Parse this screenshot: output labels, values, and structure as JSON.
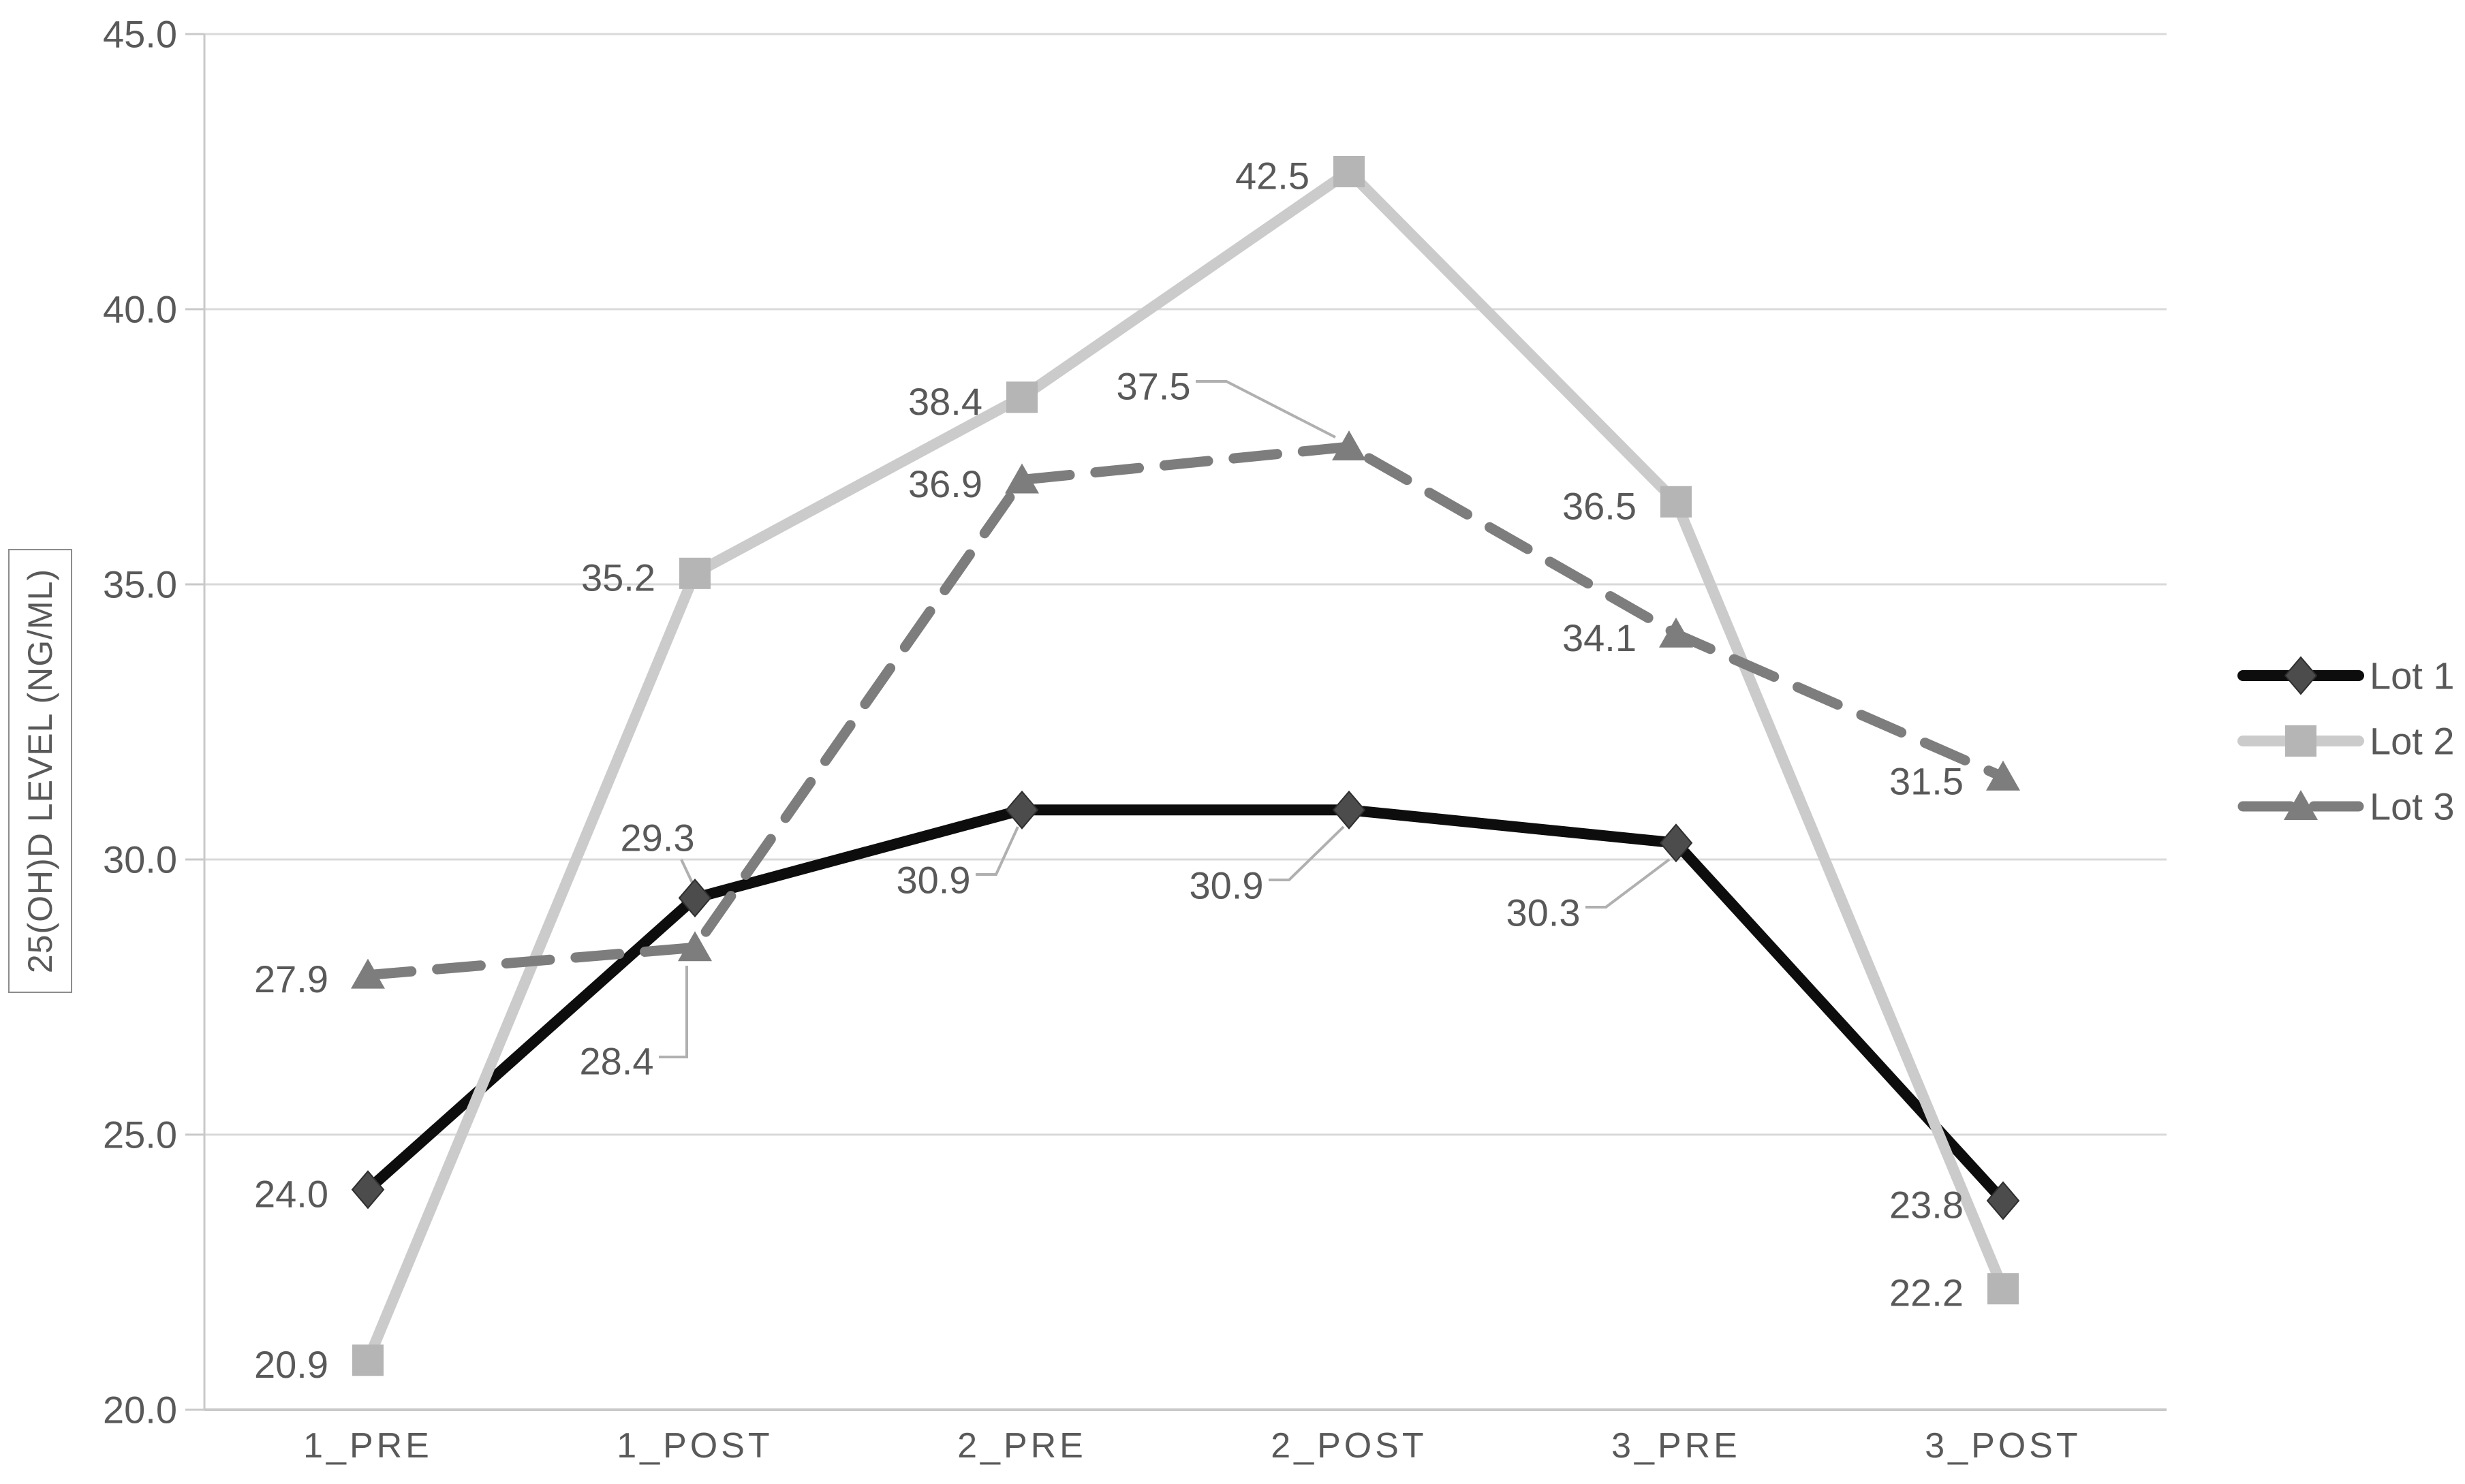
{
  "chart_data": {
    "type": "line",
    "title": "",
    "xlabel": "",
    "ylabel": "25(OH)D LEVEL (NG/ML)",
    "categories": [
      "1_PRE",
      "1_POST",
      "2_PRE",
      "2_POST",
      "3_PRE",
      "3_POST"
    ],
    "series": [
      {
        "name": "Lot 1",
        "marker": "diamond",
        "line_style": "solid",
        "line_color": "#0d0d0d",
        "marker_color": "#4c4c4c",
        "values": [
          24.0,
          29.3,
          30.9,
          30.9,
          30.3,
          23.8
        ],
        "data_labels": [
          "24.0",
          "29.3",
          "30.9",
          "30.9",
          "30.3",
          "23.8"
        ]
      },
      {
        "name": "Lot 2",
        "marker": "square",
        "line_style": "solid",
        "line_color": "#cbcbcb",
        "marker_color": "#b5b5b5",
        "values": [
          20.9,
          35.2,
          38.4,
          42.5,
          36.5,
          22.2
        ],
        "data_labels": [
          "20.9",
          "35.2",
          "38.4",
          "42.5",
          "36.5",
          "22.2"
        ]
      },
      {
        "name": "Lot 3",
        "marker": "triangle",
        "line_style": "dashed",
        "line_color": "#7d7d7d",
        "marker_color": "#7d7d7d",
        "values": [
          27.9,
          28.4,
          36.9,
          37.5,
          34.1,
          31.5
        ],
        "data_labels": [
          "27.9",
          "28.4",
          "36.9",
          "37.5",
          "34.1",
          "31.5"
        ]
      }
    ],
    "ylim": [
      20,
      45
    ],
    "ytick_step": 5,
    "ytick_labels": [
      "20.0",
      "25.0",
      "30.0",
      "35.0",
      "40.0",
      "45.0"
    ],
    "grid": true,
    "legend_position": "right",
    "legend_entries": [
      "Lot 1",
      "Lot 2",
      "Lot 3"
    ],
    "colors": {
      "gridline": "#d9d9d9",
      "axis_line": "#c9c9c9",
      "text": "#595959",
      "leader_line": "#b0b0b0"
    }
  }
}
